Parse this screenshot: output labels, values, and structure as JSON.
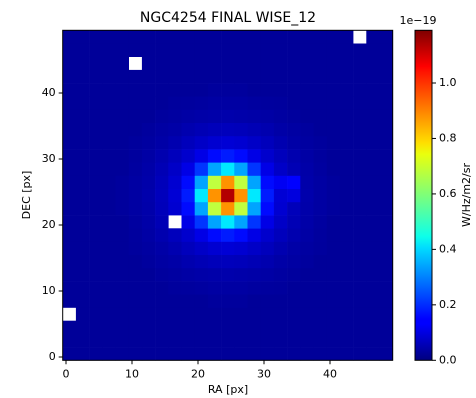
{
  "chart_data": {
    "type": "heatmap",
    "title": "NGC4254 FINAL WISE_12",
    "x_label": "RA [px]",
    "y_label": "DEC [px]",
    "colormap": "jet",
    "xbins": [
      -0.5,
      1.5,
      3.5,
      5.5,
      7.5,
      9.5,
      11.5,
      13.5,
      15.5,
      17.5,
      19.5,
      21.5,
      23.5,
      25.5,
      27.5,
      29.5,
      31.5,
      33.5,
      35.5,
      37.5,
      39.5,
      41.5,
      43.5,
      45.5,
      47.5,
      49.5
    ],
    "ybins": [
      -0.5,
      1.5,
      3.5,
      5.5,
      7.5,
      9.5,
      11.5,
      13.5,
      15.5,
      17.5,
      19.5,
      21.5,
      23.5,
      25.5,
      27.5,
      29.5,
      31.5,
      33.5,
      35.5,
      37.5,
      39.5,
      41.5,
      43.5,
      45.5,
      47.5,
      49.5
    ],
    "z": [
      [
        0.03,
        0.03,
        0.03,
        0.03,
        0.03,
        0.03,
        0.03,
        0.03,
        0.03,
        0.03,
        0.03,
        0.03,
        0.03,
        0.03,
        0.03,
        0.03,
        0.03,
        0.03,
        0.03,
        0.03,
        0.03,
        0.03,
        0.03,
        0.03,
        0.03
      ],
      [
        0.03,
        0.03,
        0.03,
        0.03,
        0.03,
        0.03,
        0.03,
        0.03,
        0.03,
        0.03,
        0.03,
        0.03,
        0.03,
        0.03,
        0.03,
        0.03,
        0.03,
        0.03,
        0.03,
        0.03,
        0.03,
        0.03,
        0.03,
        0.03,
        0.03
      ],
      [
        0.03,
        0.03,
        0.03,
        0.03,
        0.03,
        0.03,
        0.03,
        0.03,
        0.03,
        0.03,
        0.03,
        0.03,
        0.03,
        0.03,
        0.03,
        0.03,
        0.03,
        0.03,
        0.03,
        0.03,
        0.03,
        0.03,
        0.03,
        0.03,
        0.03
      ],
      [
        null,
        0.03,
        0.03,
        0.03,
        0.03,
        0.03,
        0.03,
        0.03,
        0.03,
        0.03,
        0.03,
        0.03,
        0.03,
        0.03,
        0.03,
        0.03,
        0.03,
        0.03,
        0.03,
        0.03,
        0.03,
        0.03,
        0.03,
        0.03,
        0.03
      ],
      [
        0.03,
        0.03,
        0.03,
        0.03,
        0.03,
        0.03,
        0.03,
        0.03,
        0.03,
        0.03,
        0.03,
        0.034,
        0.034,
        0.034,
        0.03,
        0.03,
        0.03,
        0.03,
        0.03,
        0.03,
        0.03,
        0.03,
        0.03,
        0.03,
        0.03
      ],
      [
        0.03,
        0.03,
        0.03,
        0.03,
        0.03,
        0.03,
        0.03,
        0.03,
        0.034,
        0.036,
        0.038,
        0.041,
        0.041,
        0.041,
        0.038,
        0.036,
        0.034,
        0.03,
        0.03,
        0.03,
        0.03,
        0.03,
        0.03,
        0.03,
        0.03
      ],
      [
        0.03,
        0.03,
        0.03,
        0.03,
        0.03,
        0.03,
        0.03,
        0.035,
        0.039,
        0.044,
        0.047,
        0.05,
        0.052,
        0.05,
        0.047,
        0.044,
        0.039,
        0.035,
        0.03,
        0.03,
        0.03,
        0.03,
        0.03,
        0.03,
        0.03
      ],
      [
        0.03,
        0.03,
        0.03,
        0.03,
        0.03,
        0.03,
        0.035,
        0.041,
        0.046,
        0.055,
        0.062,
        0.068,
        0.07,
        0.068,
        0.062,
        0.055,
        0.046,
        0.041,
        0.035,
        0.03,
        0.03,
        0.03,
        0.03,
        0.03,
        0.03
      ],
      [
        0.03,
        0.03,
        0.03,
        0.03,
        0.03,
        0.034,
        0.039,
        0.046,
        0.057,
        0.07,
        0.083,
        0.095,
        0.1,
        0.095,
        0.083,
        0.07,
        0.057,
        0.046,
        0.039,
        0.034,
        0.03,
        0.03,
        0.03,
        0.03,
        0.03
      ],
      [
        0.03,
        0.03,
        0.03,
        0.03,
        0.03,
        0.036,
        0.044,
        0.055,
        0.07,
        0.09,
        0.12,
        0.16,
        0.18,
        0.16,
        0.12,
        0.09,
        0.07,
        0.055,
        0.044,
        0.036,
        0.03,
        0.03,
        0.03,
        0.03,
        0.03
      ],
      [
        0.03,
        0.03,
        0.03,
        0.03,
        0.03,
        0.038,
        0.047,
        0.062,
        null,
        0.12,
        0.21,
        0.34,
        0.42,
        0.34,
        0.21,
        0.12,
        0.083,
        0.062,
        0.047,
        0.038,
        0.03,
        0.03,
        0.03,
        0.03,
        0.03
      ],
      [
        0.03,
        0.03,
        0.03,
        0.03,
        0.034,
        0.041,
        0.05,
        0.068,
        0.095,
        0.16,
        0.34,
        0.67,
        0.87,
        0.67,
        0.34,
        0.16,
        0.095,
        0.068,
        0.05,
        0.041,
        0.034,
        0.03,
        0.03,
        0.03,
        0.03
      ],
      [
        0.03,
        0.03,
        0.03,
        0.03,
        0.034,
        0.041,
        0.052,
        0.07,
        0.1,
        0.18,
        0.42,
        0.87,
        1.13,
        0.87,
        0.42,
        0.18,
        0.1,
        0.11,
        0.052,
        0.041,
        0.034,
        0.03,
        0.03,
        0.03,
        0.03
      ],
      [
        0.03,
        0.03,
        0.03,
        0.03,
        0.034,
        0.041,
        0.05,
        0.068,
        0.095,
        0.16,
        0.34,
        0.67,
        0.87,
        0.67,
        0.34,
        0.16,
        0.135,
        0.15,
        0.05,
        0.041,
        0.034,
        0.03,
        0.03,
        0.03,
        0.03
      ],
      [
        0.03,
        0.03,
        0.03,
        0.03,
        0.03,
        0.038,
        0.047,
        0.062,
        0.083,
        0.12,
        0.21,
        0.34,
        0.42,
        0.34,
        0.21,
        0.12,
        0.083,
        0.062,
        0.047,
        0.038,
        0.03,
        0.03,
        0.03,
        0.03,
        0.03
      ],
      [
        0.03,
        0.03,
        0.03,
        0.03,
        0.03,
        0.036,
        0.044,
        0.055,
        0.07,
        0.09,
        0.12,
        0.16,
        0.18,
        0.16,
        0.12,
        0.09,
        0.07,
        0.055,
        0.044,
        0.036,
        0.03,
        0.03,
        0.03,
        0.03,
        0.03
      ],
      [
        0.03,
        0.03,
        0.03,
        0.03,
        0.03,
        0.034,
        0.039,
        0.046,
        0.057,
        0.07,
        0.083,
        0.095,
        0.1,
        0.095,
        0.083,
        0.07,
        0.057,
        0.046,
        0.039,
        0.034,
        0.03,
        0.03,
        0.03,
        0.03,
        0.03
      ],
      [
        0.03,
        0.03,
        0.03,
        0.03,
        0.03,
        0.03,
        0.035,
        0.041,
        0.046,
        0.055,
        0.062,
        0.068,
        0.07,
        0.068,
        0.062,
        0.055,
        0.046,
        0.041,
        0.035,
        0.03,
        0.03,
        0.03,
        0.03,
        0.03,
        0.03
      ],
      [
        0.03,
        0.03,
        0.03,
        0.03,
        0.03,
        0.03,
        0.03,
        0.035,
        0.039,
        0.044,
        0.047,
        0.05,
        0.052,
        0.05,
        0.047,
        0.044,
        0.039,
        0.035,
        0.03,
        0.03,
        0.03,
        0.03,
        0.03,
        0.03,
        0.03
      ],
      [
        0.03,
        0.03,
        0.03,
        0.03,
        0.03,
        0.03,
        0.03,
        0.03,
        0.034,
        0.036,
        0.038,
        0.041,
        0.041,
        0.041,
        0.038,
        0.036,
        0.034,
        0.03,
        0.03,
        0.03,
        0.03,
        0.03,
        0.03,
        0.03,
        0.03
      ],
      [
        0.03,
        0.03,
        0.03,
        0.03,
        0.03,
        0.03,
        0.03,
        0.03,
        0.03,
        0.03,
        0.03,
        0.034,
        0.034,
        0.034,
        0.03,
        0.03,
        0.03,
        0.03,
        0.03,
        0.03,
        0.03,
        0.03,
        0.03,
        0.03,
        0.03
      ],
      [
        0.03,
        0.03,
        0.03,
        0.03,
        0.03,
        0.03,
        0.03,
        0.03,
        0.03,
        0.03,
        0.03,
        0.03,
        0.03,
        0.03,
        0.03,
        0.03,
        0.03,
        0.03,
        0.03,
        0.03,
        0.03,
        0.03,
        0.03,
        0.03,
        0.03
      ],
      [
        0.03,
        0.03,
        0.03,
        0.03,
        0.03,
        null,
        0.03,
        0.03,
        0.03,
        0.03,
        0.03,
        0.03,
        0.03,
        0.03,
        0.03,
        0.03,
        0.03,
        0.03,
        0.03,
        0.03,
        0.03,
        0.03,
        0.03,
        0.03,
        0.03
      ],
      [
        0.03,
        0.03,
        0.03,
        0.03,
        0.03,
        0.03,
        0.03,
        0.03,
        0.03,
        0.03,
        0.03,
        0.03,
        0.03,
        0.03,
        0.03,
        0.03,
        0.03,
        0.03,
        0.03,
        0.03,
        0.03,
        0.03,
        0.03,
        0.03,
        0.03
      ],
      [
        0.03,
        0.03,
        0.03,
        0.03,
        0.03,
        0.03,
        0.03,
        0.03,
        0.03,
        0.03,
        0.03,
        0.03,
        0.03,
        0.03,
        0.03,
        0.03,
        0.03,
        0.03,
        0.03,
        0.03,
        0.03,
        0.03,
        null,
        0.03,
        0.03
      ]
    ],
    "xlim": [
      -0.5,
      49.5
    ],
    "ylim": [
      -0.5,
      49.5
    ],
    "xticks": [
      0,
      10,
      20,
      30,
      40
    ],
    "yticks": [
      0,
      10,
      20,
      30,
      40
    ],
    "colorbar": {
      "label": "W/Hz/m2/sr",
      "offset_label": "1e−19",
      "lim": [
        0,
        1.19
      ],
      "ticks": [
        {
          "value": 0,
          "label": "0.0"
        },
        0.2,
        0.4,
        0.6,
        0.8,
        {
          "value": 1,
          "label": "1.0"
        }
      ]
    }
  }
}
